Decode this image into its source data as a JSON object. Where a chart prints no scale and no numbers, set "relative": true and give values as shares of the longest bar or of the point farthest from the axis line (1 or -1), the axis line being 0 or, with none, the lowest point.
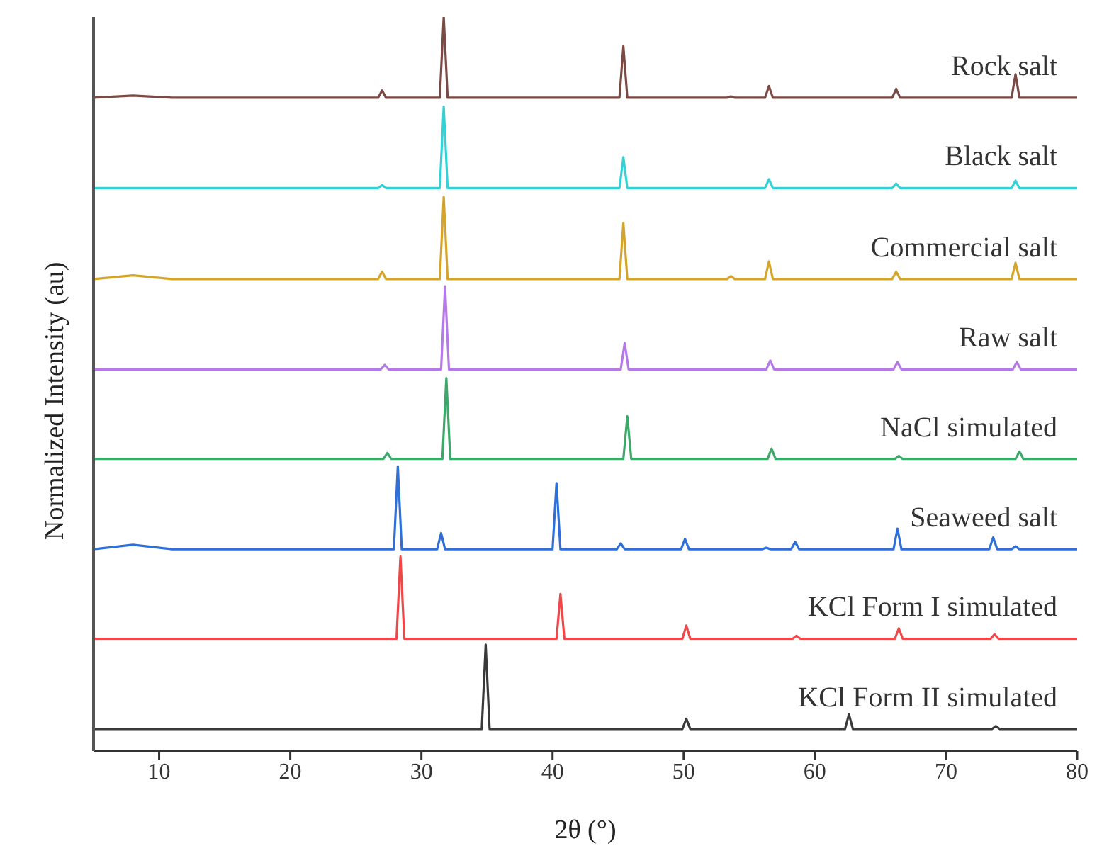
{
  "chart_data": {
    "type": "line",
    "relative": true,
    "xlabel": "2θ (°)",
    "ylabel": "Normalized Intensity (au)",
    "xlim": [
      5,
      80
    ],
    "xticks": [
      10,
      20,
      30,
      40,
      50,
      60,
      70,
      80
    ],
    "legend": false,
    "marker": "none",
    "line_style": "solid",
    "series": [
      {
        "name": "Rock salt",
        "color": "#7b4a45",
        "x": [
          5,
          8,
          11,
          26.7,
          27.0,
          27.3,
          31.4,
          31.7,
          32.0,
          45.1,
          45.4,
          45.7,
          53.3,
          53.6,
          53.9,
          56.2,
          56.5,
          56.8,
          65.9,
          66.2,
          66.5,
          75.0,
          75.3,
          75.6,
          80
        ],
        "values": [
          0.89,
          0.893,
          0.89,
          0.89,
          0.9,
          0.89,
          0.89,
          1.0,
          0.89,
          0.89,
          0.96,
          0.89,
          0.89,
          0.892,
          0.89,
          0.89,
          0.906,
          0.89,
          0.89,
          0.902,
          0.89,
          0.89,
          0.922,
          0.89,
          0.89
        ]
      },
      {
        "name": "Black salt",
        "color": "#33d2d6",
        "x": [
          5,
          26.7,
          27.0,
          27.3,
          31.4,
          31.7,
          32.0,
          45.1,
          45.4,
          45.7,
          56.2,
          56.5,
          56.8,
          65.9,
          66.2,
          66.5,
          75.0,
          75.3,
          75.6,
          80
        ],
        "values": [
          0.767,
          0.767,
          0.771,
          0.767,
          0.767,
          0.878,
          0.767,
          0.767,
          0.809,
          0.767,
          0.767,
          0.779,
          0.767,
          0.767,
          0.773,
          0.767,
          0.767,
          0.777,
          0.767,
          0.767
        ]
      },
      {
        "name": "Commercial salt",
        "color": "#d4a52a",
        "x": [
          5,
          8,
          11,
          26.7,
          27.0,
          27.3,
          31.4,
          31.7,
          32.0,
          45.1,
          45.4,
          45.7,
          53.3,
          53.6,
          53.9,
          56.2,
          56.5,
          56.8,
          65.9,
          66.2,
          66.5,
          75.0,
          75.3,
          75.6,
          80
        ],
        "values": [
          0.643,
          0.648,
          0.643,
          0.643,
          0.653,
          0.643,
          0.643,
          0.755,
          0.643,
          0.643,
          0.719,
          0.643,
          0.643,
          0.647,
          0.643,
          0.643,
          0.667,
          0.643,
          0.643,
          0.653,
          0.643,
          0.643,
          0.665,
          0.643,
          0.643
        ]
      },
      {
        "name": "Raw salt",
        "color": "#b57ae6",
        "x": [
          5,
          26.9,
          27.2,
          27.5,
          31.5,
          31.8,
          32.1,
          45.2,
          45.5,
          45.8,
          56.3,
          56.6,
          56.9,
          66.0,
          66.3,
          66.6,
          75.1,
          75.4,
          75.7,
          80
        ],
        "values": [
          0.52,
          0.52,
          0.526,
          0.52,
          0.52,
          0.633,
          0.52,
          0.52,
          0.556,
          0.52,
          0.52,
          0.532,
          0.52,
          0.52,
          0.53,
          0.52,
          0.52,
          0.53,
          0.52,
          0.52
        ]
      },
      {
        "name": "NaCl simulated",
        "color": "#3ca86a",
        "x": [
          5,
          27.1,
          27.4,
          27.7,
          31.6,
          31.9,
          32.2,
          45.4,
          45.7,
          46.0,
          56.4,
          56.7,
          57.0,
          66.1,
          66.4,
          66.7,
          75.3,
          75.6,
          75.9,
          80
        ],
        "values": [
          0.398,
          0.398,
          0.406,
          0.398,
          0.398,
          0.508,
          0.398,
          0.398,
          0.456,
          0.398,
          0.398,
          0.412,
          0.398,
          0.398,
          0.402,
          0.398,
          0.398,
          0.408,
          0.398,
          0.398
        ]
      },
      {
        "name": "Seaweed salt",
        "color": "#2f6fd8",
        "x": [
          5,
          8,
          11,
          27.9,
          28.2,
          28.5,
          31.2,
          31.5,
          31.8,
          40.0,
          40.3,
          40.6,
          44.9,
          45.2,
          45.5,
          49.8,
          50.1,
          50.4,
          56.0,
          56.3,
          56.6,
          58.2,
          58.5,
          58.8,
          66.0,
          66.3,
          66.6,
          73.3,
          73.6,
          73.9,
          75.0,
          75.3,
          75.6,
          80
        ],
        "values": [
          0.275,
          0.281,
          0.275,
          0.275,
          0.388,
          0.275,
          0.275,
          0.297,
          0.275,
          0.275,
          0.365,
          0.275,
          0.275,
          0.283,
          0.275,
          0.275,
          0.289,
          0.275,
          0.275,
          0.277,
          0.275,
          0.275,
          0.285,
          0.275,
          0.275,
          0.303,
          0.275,
          0.275,
          0.291,
          0.275,
          0.275,
          0.279,
          0.275,
          0.275
        ]
      },
      {
        "name": "KCl Form I simulated",
        "color": "#f04848",
        "x": [
          5,
          28.1,
          28.4,
          28.7,
          40.3,
          40.6,
          40.9,
          49.9,
          50.2,
          50.5,
          58.3,
          58.6,
          58.9,
          66.1,
          66.4,
          66.7,
          73.4,
          73.7,
          74.0,
          80
        ],
        "values": [
          0.153,
          0.153,
          0.265,
          0.153,
          0.153,
          0.214,
          0.153,
          0.153,
          0.171,
          0.153,
          0.153,
          0.157,
          0.153,
          0.153,
          0.167,
          0.153,
          0.153,
          0.159,
          0.153,
          0.153
        ]
      },
      {
        "name": "KCl Form II simulated",
        "color": "#3a3a3a",
        "x": [
          5,
          34.6,
          34.9,
          35.2,
          49.9,
          50.2,
          50.5,
          62.3,
          62.6,
          62.9,
          73.5,
          73.8,
          74.1,
          80
        ],
        "values": [
          0.03,
          0.03,
          0.145,
          0.03,
          0.03,
          0.044,
          0.03,
          0.03,
          0.05,
          0.03,
          0.03,
          0.034,
          0.03,
          0.03
        ]
      }
    ]
  }
}
